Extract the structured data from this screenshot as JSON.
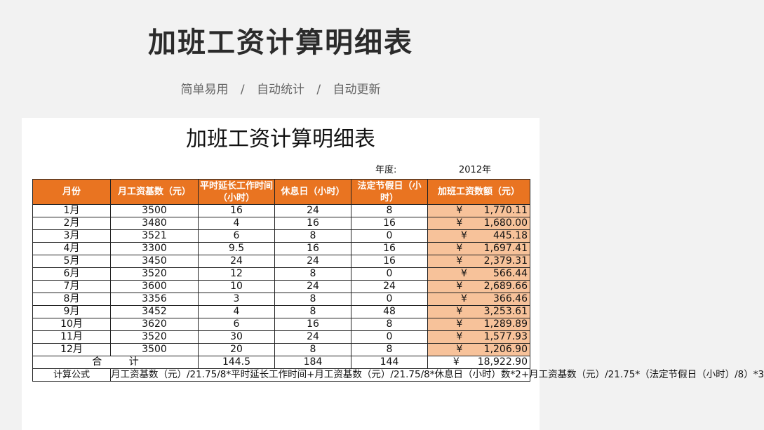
{
  "banner": {
    "title": "加班工资计算明细表",
    "tags": [
      "简单易用",
      "自动统计",
      "自动更新"
    ],
    "separator": "/"
  },
  "sheet": {
    "title": "加班工资计算明细表",
    "year_label": "年度:",
    "year_value": "2012年",
    "headers": [
      "月份",
      "月工资基数（元）",
      "平时延长工作时间（小时）",
      "休息日（小时）",
      "法定节假日（小时）",
      "加班工资数额（元）"
    ],
    "currency": "¥",
    "rows": [
      {
        "month": "1月",
        "base": "3500",
        "weekday": "16",
        "rest": "24",
        "holiday": "8",
        "amount": "1,770.11"
      },
      {
        "month": "2月",
        "base": "3480",
        "weekday": "4",
        "rest": "16",
        "holiday": "16",
        "amount": "1,680.00"
      },
      {
        "month": "3月",
        "base": "3521",
        "weekday": "6",
        "rest": "8",
        "holiday": "0",
        "amount": "445.18"
      },
      {
        "month": "4月",
        "base": "3300",
        "weekday": "9.5",
        "rest": "16",
        "holiday": "16",
        "amount": "1,697.41"
      },
      {
        "month": "5月",
        "base": "3450",
        "weekday": "24",
        "rest": "24",
        "holiday": "16",
        "amount": "2,379.31"
      },
      {
        "month": "6月",
        "base": "3520",
        "weekday": "12",
        "rest": "8",
        "holiday": "0",
        "amount": "566.44"
      },
      {
        "month": "7月",
        "base": "3600",
        "weekday": "10",
        "rest": "24",
        "holiday": "24",
        "amount": "2,689.66"
      },
      {
        "month": "8月",
        "base": "3356",
        "weekday": "3",
        "rest": "8",
        "holiday": "0",
        "amount": "366.46"
      },
      {
        "month": "9月",
        "base": "3452",
        "weekday": "4",
        "rest": "8",
        "holiday": "48",
        "amount": "3,253.61"
      },
      {
        "month": "10月",
        "base": "3620",
        "weekday": "6",
        "rest": "16",
        "holiday": "8",
        "amount": "1,289.89"
      },
      {
        "month": "11月",
        "base": "3520",
        "weekday": "30",
        "rest": "24",
        "holiday": "0",
        "amount": "1,577.93"
      },
      {
        "month": "12月",
        "base": "3500",
        "weekday": "20",
        "rest": "8",
        "holiday": "8",
        "amount": "1,206.90"
      }
    ],
    "total": {
      "label_a": "合",
      "label_b": "计",
      "weekday": "144.5",
      "rest": "184",
      "holiday": "144",
      "amount": "18,922.90"
    },
    "formula": {
      "label": "计算公式",
      "text": "月工资基数（元）/21.75/8*平时延长工作时间+月工资基数（元）/21.75/8*休息日（小时）数*2+月工资基数（元）/21.75*（法定节假日（小时）/8）*3"
    }
  }
}
